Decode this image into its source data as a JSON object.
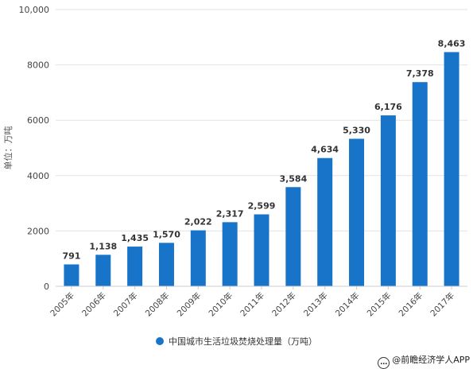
{
  "chart_data": {
    "type": "bar",
    "categories": [
      "2005年",
      "2006年",
      "2007年",
      "2008年",
      "2009年",
      "2010年",
      "2011年",
      "2012年",
      "2013年",
      "2014年",
      "2015年",
      "2016年",
      "2017年"
    ],
    "series": [
      {
        "name": "中国城市生活垃圾焚烧处理量（万吨）",
        "values": [
          791,
          1138,
          1435,
          1570,
          2022,
          2317,
          2599,
          3584,
          4634,
          5330,
          6176,
          7378,
          8463
        ]
      }
    ],
    "data_labels": [
      "791",
      "1,138",
      "1,435",
      "1,570",
      "2,022",
      "2,317",
      "2,599",
      "3,584",
      "4,634",
      "5,330",
      "6,176",
      "7,378",
      "8,463"
    ],
    "yticks": [
      0,
      2000,
      4000,
      6000,
      8000,
      10000
    ],
    "ytick_labels": [
      "0",
      "2000",
      "4000",
      "6000",
      "8000",
      "10,000"
    ],
    "ylim": [
      0,
      10000
    ],
    "ylabel": "单位：万吨",
    "grid": true,
    "legend_position": "bottom",
    "bar_color": "#1874c9"
  },
  "credit": {
    "text": "@前瞻经济学人APP",
    "icon": "chat-bubble-icon"
  }
}
